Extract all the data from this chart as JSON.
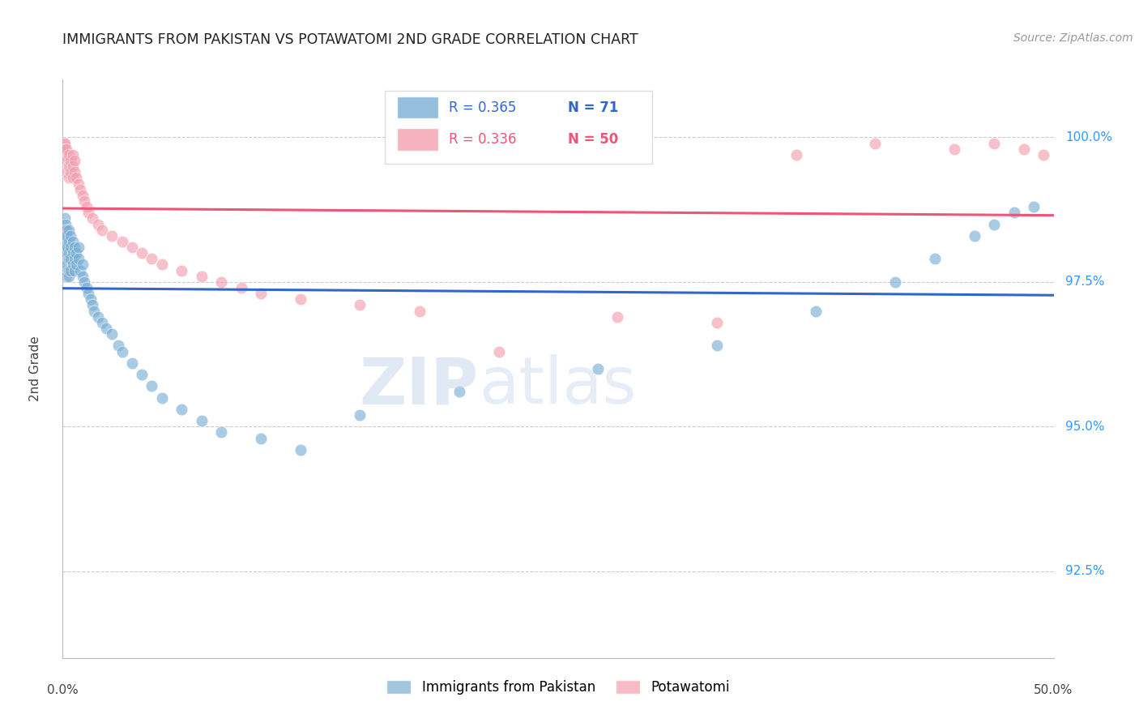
{
  "title": "IMMIGRANTS FROM PAKISTAN VS POTAWATOMI 2ND GRADE CORRELATION CHART",
  "source": "Source: ZipAtlas.com",
  "ylabel": "2nd Grade",
  "yaxis_values": [
    0.925,
    0.95,
    0.975,
    1.0
  ],
  "yaxis_labels": [
    "92.5%",
    "95.0%",
    "97.5%",
    "100.0%"
  ],
  "xmin": 0.0,
  "xmax": 0.5,
  "ymin": 0.91,
  "ymax": 1.01,
  "legend_blue_r": "0.365",
  "legend_blue_n": "71",
  "legend_pink_r": "0.336",
  "legend_pink_n": "50",
  "blue_color": "#7BAFD4",
  "pink_color": "#F4A0B0",
  "blue_line_color": "#3366CC",
  "pink_line_color": "#EE5577",
  "watermark_zip": "ZIP",
  "watermark_atlas": "atlas",
  "blue_x": [
    0.0008,
    0.0009,
    0.001,
    0.001,
    0.001,
    0.001,
    0.001,
    0.0012,
    0.0015,
    0.002,
    0.002,
    0.002,
    0.002,
    0.002,
    0.002,
    0.0025,
    0.003,
    0.003,
    0.003,
    0.003,
    0.003,
    0.003,
    0.004,
    0.004,
    0.004,
    0.004,
    0.005,
    0.005,
    0.005,
    0.006,
    0.006,
    0.006,
    0.007,
    0.007,
    0.008,
    0.008,
    0.009,
    0.01,
    0.01,
    0.011,
    0.012,
    0.013,
    0.014,
    0.015,
    0.016,
    0.018,
    0.02,
    0.022,
    0.025,
    0.028,
    0.03,
    0.035,
    0.04,
    0.045,
    0.05,
    0.06,
    0.07,
    0.08,
    0.1,
    0.12,
    0.15,
    0.2,
    0.27,
    0.33,
    0.38,
    0.42,
    0.44,
    0.46,
    0.47,
    0.48,
    0.49
  ],
  "blue_y": [
    0.984,
    0.982,
    0.98,
    0.983,
    0.979,
    0.986,
    0.977,
    0.981,
    0.985,
    0.982,
    0.984,
    0.98,
    0.978,
    0.976,
    0.983,
    0.981,
    0.979,
    0.977,
    0.982,
    0.98,
    0.984,
    0.976,
    0.981,
    0.979,
    0.983,
    0.977,
    0.98,
    0.978,
    0.982,
    0.981,
    0.979,
    0.977,
    0.98,
    0.978,
    0.981,
    0.979,
    0.977,
    0.976,
    0.978,
    0.975,
    0.974,
    0.973,
    0.972,
    0.971,
    0.97,
    0.969,
    0.968,
    0.967,
    0.966,
    0.964,
    0.963,
    0.961,
    0.959,
    0.957,
    0.955,
    0.953,
    0.951,
    0.949,
    0.948,
    0.946,
    0.952,
    0.956,
    0.96,
    0.964,
    0.97,
    0.975,
    0.979,
    0.983,
    0.985,
    0.987,
    0.988
  ],
  "pink_x": [
    0.0008,
    0.001,
    0.001,
    0.0012,
    0.002,
    0.002,
    0.002,
    0.003,
    0.003,
    0.003,
    0.004,
    0.004,
    0.005,
    0.005,
    0.005,
    0.006,
    0.006,
    0.007,
    0.008,
    0.009,
    0.01,
    0.011,
    0.012,
    0.013,
    0.015,
    0.018,
    0.02,
    0.025,
    0.03,
    0.035,
    0.04,
    0.045,
    0.05,
    0.06,
    0.07,
    0.08,
    0.09,
    0.1,
    0.12,
    0.15,
    0.18,
    0.22,
    0.28,
    0.33,
    0.37,
    0.41,
    0.45,
    0.47,
    0.485,
    0.495
  ],
  "pink_y": [
    0.999,
    0.997,
    0.999,
    0.998,
    0.998,
    0.996,
    0.994,
    0.997,
    0.995,
    0.993,
    0.996,
    0.994,
    0.997,
    0.995,
    0.993,
    0.996,
    0.994,
    0.993,
    0.992,
    0.991,
    0.99,
    0.989,
    0.988,
    0.987,
    0.986,
    0.985,
    0.984,
    0.983,
    0.982,
    0.981,
    0.98,
    0.979,
    0.978,
    0.977,
    0.976,
    0.975,
    0.974,
    0.973,
    0.972,
    0.971,
    0.97,
    0.963,
    0.969,
    0.968,
    0.997,
    0.999,
    0.998,
    0.999,
    0.998,
    0.997
  ]
}
